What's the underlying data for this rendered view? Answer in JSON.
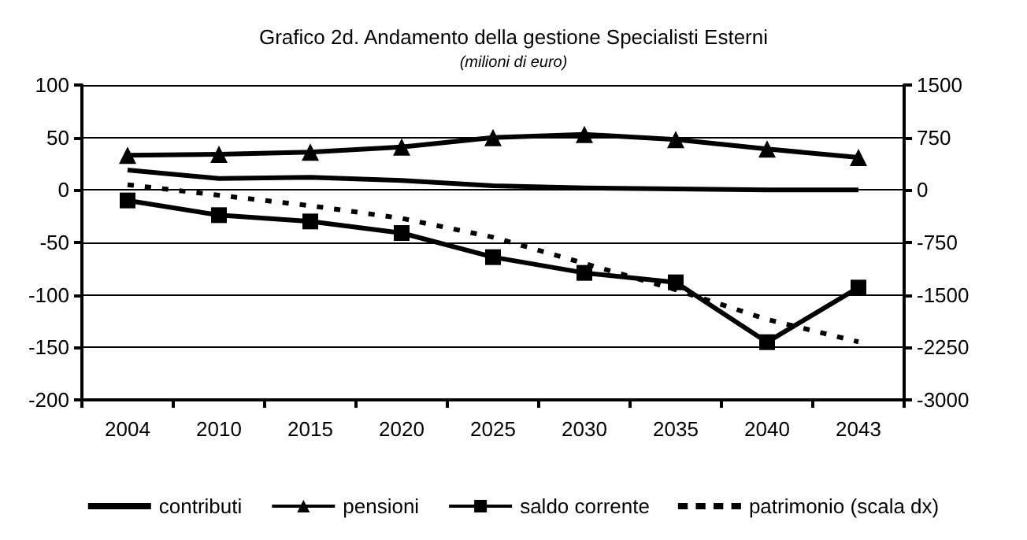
{
  "chart_data": {
    "type": "line",
    "title": "Grafico 2d. Andamento della gestione Specialisti Esterni",
    "subtitle": "(milioni di euro)",
    "categories": [
      "2004",
      "2010",
      "2015",
      "2020",
      "2025",
      "2030",
      "2035",
      "2040",
      "2043"
    ],
    "series": [
      {
        "name": "contributi",
        "color": "#000000",
        "marker": "none",
        "line_style": "solid",
        "values": [
          19,
          11,
          12,
          9,
          4,
          2,
          1,
          0,
          0
        ]
      },
      {
        "name": "pensioni",
        "color": "#000000",
        "marker": "triangle",
        "line_style": "solid",
        "values": [
          33,
          34,
          36,
          41,
          50,
          53,
          48,
          39,
          31
        ]
      },
      {
        "name": "saldo corrente",
        "color": "#000000",
        "marker": "square",
        "line_style": "solid",
        "values": [
          -10,
          -24,
          -30,
          -41,
          -64,
          -79,
          -88,
          -145,
          -93
        ]
      },
      {
        "name": "patrimonio (scala dx)",
        "color": "#000000",
        "marker": "none",
        "line_style": "dashed",
        "axis": "y2",
        "values": [
          75,
          -75,
          -225,
          -405,
          -675,
          -1050,
          -1425,
          -1850,
          -2170
        ]
      }
    ],
    "ylim": [
      -200,
      100
    ],
    "yticks": [
      -200,
      -150,
      -100,
      -50,
      0,
      50,
      100
    ],
    "y2lim": [
      -3000,
      1500
    ],
    "y2ticks": [
      -3000,
      -2250,
      -1500,
      -750,
      0,
      750,
      1500
    ],
    "grid": "y",
    "legend": "bottom"
  }
}
